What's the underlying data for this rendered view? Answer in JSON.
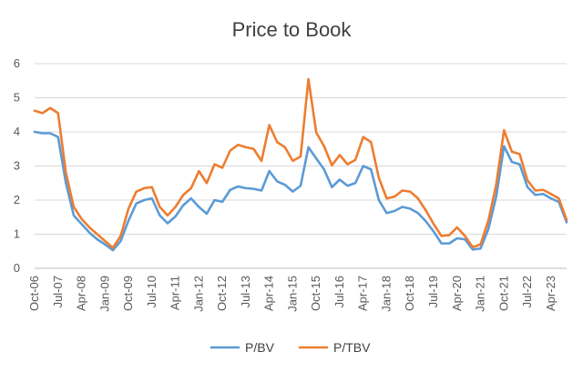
{
  "chart_data": {
    "type": "line",
    "title": "Price to Book",
    "ylim": [
      0,
      6
    ],
    "y_ticks": [
      "0",
      "1",
      "2",
      "3",
      "4",
      "5",
      "6"
    ],
    "x_tick_labels": [
      "Oct-06",
      "Jul-07",
      "Apr-08",
      "Jan-09",
      "Oct-09",
      "Jul-10",
      "Apr-11",
      "Jan-12",
      "Oct-12",
      "Jul-13",
      "Apr-14",
      "Jan-15",
      "Oct-15",
      "Jul-16",
      "Apr-17",
      "Jan-18",
      "Oct-18",
      "Jul-19",
      "Apr-20",
      "Jan-21",
      "Oct-21",
      "Jul-22",
      "Apr-23"
    ],
    "grid": true,
    "legend_position": "bottom",
    "series": [
      {
        "name": "P/BV",
        "color": "#5B9BD5",
        "values": [
          4.0,
          3.96,
          3.96,
          3.85,
          2.5,
          1.55,
          1.3,
          1.05,
          0.85,
          0.7,
          0.53,
          0.8,
          1.4,
          1.9,
          2.0,
          2.05,
          1.55,
          1.32,
          1.52,
          1.85,
          2.05,
          1.8,
          1.6,
          2.0,
          1.95,
          2.3,
          2.4,
          2.35,
          2.33,
          2.28,
          2.85,
          2.55,
          2.45,
          2.25,
          2.42,
          3.55,
          3.22,
          2.9,
          2.38,
          2.6,
          2.42,
          2.5,
          3.0,
          2.9,
          2.0,
          1.62,
          1.68,
          1.8,
          1.75,
          1.62,
          1.38,
          1.08,
          0.73,
          0.73,
          0.88,
          0.85,
          0.55,
          0.58,
          1.15,
          2.1,
          3.58,
          3.12,
          3.05,
          2.38,
          2.15,
          2.18,
          2.05,
          1.95,
          1.35
        ]
      },
      {
        "name": "P/TBV",
        "color": "#ED7D31",
        "values": [
          4.62,
          4.55,
          4.7,
          4.55,
          2.8,
          1.8,
          1.45,
          1.2,
          1.0,
          0.8,
          0.6,
          0.95,
          1.75,
          2.25,
          2.35,
          2.38,
          1.8,
          1.55,
          1.8,
          2.15,
          2.35,
          2.85,
          2.5,
          3.05,
          2.95,
          3.45,
          3.62,
          3.55,
          3.5,
          3.15,
          4.2,
          3.7,
          3.55,
          3.15,
          3.28,
          5.55,
          3.98,
          3.58,
          3.02,
          3.32,
          3.05,
          3.18,
          3.85,
          3.7,
          2.65,
          2.05,
          2.1,
          2.28,
          2.25,
          2.05,
          1.7,
          1.3,
          0.95,
          0.97,
          1.2,
          0.95,
          0.62,
          0.7,
          1.4,
          2.45,
          4.05,
          3.42,
          3.35,
          2.58,
          2.28,
          2.3,
          2.18,
          2.05,
          1.42
        ]
      }
    ]
  }
}
